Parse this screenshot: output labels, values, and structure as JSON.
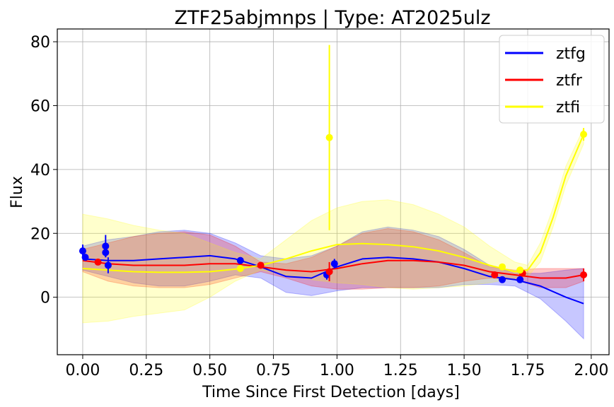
{
  "chart_data": {
    "type": "line",
    "title": "ZTF25abjmnps | Type: AT2025ulz",
    "xlabel": "Time Since First Detection [days]",
    "ylabel": "Flux",
    "xlim": [
      -0.1,
      2.07
    ],
    "ylim": [
      -18,
      84
    ],
    "xticks": [
      0.0,
      0.25,
      0.5,
      0.75,
      1.0,
      1.25,
      1.5,
      1.75,
      2.0
    ],
    "xtick_labels": [
      "0.00",
      "0.25",
      "0.50",
      "0.75",
      "1.00",
      "1.25",
      "1.50",
      "1.75",
      "2.00"
    ],
    "yticks": [
      0,
      20,
      40,
      60,
      80
    ],
    "ytick_labels": [
      "0",
      "20",
      "40",
      "60",
      "80"
    ],
    "grid": true,
    "legend_position": "top-right",
    "series": [
      {
        "name": "ztfg",
        "color": "#0000ff",
        "model_x": [
          0.0,
          0.1,
          0.2,
          0.3,
          0.4,
          0.5,
          0.6,
          0.7,
          0.8,
          0.9,
          1.0,
          1.1,
          1.2,
          1.3,
          1.4,
          1.5,
          1.6,
          1.7,
          1.8,
          1.9,
          1.97
        ],
        "model_y": [
          12.0,
          11.5,
          11.5,
          12.0,
          12.5,
          13.0,
          12.0,
          9.5,
          6.5,
          6.0,
          9.5,
          12.0,
          12.5,
          12.0,
          11.0,
          9.0,
          6.5,
          5.5,
          3.5,
          0.0,
          -2.0
        ],
        "band_upper": [
          16.0,
          18.0,
          19.0,
          20.5,
          21.0,
          20.0,
          17.0,
          13.0,
          12.0,
          13.0,
          16.0,
          20.5,
          22.0,
          21.0,
          19.0,
          15.0,
          10.0,
          7.5,
          7.5,
          8.5,
          9.0
        ],
        "band_lower": [
          8.5,
          6.5,
          4.5,
          3.5,
          3.5,
          5.0,
          7.0,
          6.0,
          1.5,
          0.5,
          2.0,
          3.0,
          3.0,
          3.0,
          3.0,
          4.0,
          4.0,
          3.5,
          -0.5,
          -7.5,
          -13.0
        ],
        "points": [
          {
            "x": 0.0,
            "y": 14.5,
            "err": 2.0
          },
          {
            "x": 0.01,
            "y": 12.5,
            "err": 1.0
          },
          {
            "x": 0.09,
            "y": 16.0,
            "err": 3.5
          },
          {
            "x": 0.09,
            "y": 14.0,
            "err": 1.5
          },
          {
            "x": 0.1,
            "y": 10.0,
            "err": 2.5
          },
          {
            "x": 0.62,
            "y": 11.5,
            "err": 1.0
          },
          {
            "x": 0.96,
            "y": 7.0,
            "err": 1.5
          },
          {
            "x": 0.99,
            "y": 10.5,
            "err": 1.5
          },
          {
            "x": 1.65,
            "y": 5.5,
            "err": 0.8
          },
          {
            "x": 1.72,
            "y": 5.5,
            "err": 0.8
          }
        ]
      },
      {
        "name": "ztfr",
        "color": "#ff0000",
        "model_x": [
          0.0,
          0.1,
          0.2,
          0.3,
          0.4,
          0.5,
          0.6,
          0.7,
          0.8,
          0.9,
          1.0,
          1.1,
          1.2,
          1.3,
          1.4,
          1.5,
          1.6,
          1.7,
          1.8,
          1.9,
          1.97
        ],
        "model_y": [
          11.5,
          10.5,
          10.0,
          10.0,
          10.0,
          10.5,
          10.5,
          9.5,
          8.5,
          8.0,
          9.0,
          10.5,
          11.5,
          11.5,
          11.0,
          10.0,
          8.0,
          7.0,
          6.0,
          6.0,
          7.0
        ],
        "band_upper": [
          15.0,
          17.0,
          19.0,
          20.0,
          20.5,
          19.5,
          16.0,
          11.0,
          10.5,
          12.5,
          16.0,
          20.0,
          21.5,
          20.5,
          18.0,
          14.0,
          9.5,
          8.5,
          9.0,
          9.0,
          9.0
        ],
        "band_lower": [
          8.0,
          5.0,
          3.5,
          3.0,
          3.0,
          4.0,
          6.0,
          8.0,
          6.0,
          3.5,
          2.5,
          2.5,
          3.0,
          3.0,
          3.5,
          5.0,
          6.0,
          5.5,
          3.0,
          3.0,
          5.0
        ],
        "points": [
          {
            "x": 0.06,
            "y": 11.0,
            "err": 1.0
          },
          {
            "x": 0.7,
            "y": 10.0,
            "err": 1.0
          },
          {
            "x": 0.97,
            "y": 8.0,
            "err": 3.0
          },
          {
            "x": 1.62,
            "y": 7.0,
            "err": 1.0
          },
          {
            "x": 1.73,
            "y": 7.5,
            "err": 1.0
          },
          {
            "x": 1.97,
            "y": 7.0,
            "err": 2.0
          }
        ]
      },
      {
        "name": "ztfi",
        "color": "#ffff00",
        "model_x": [
          0.0,
          0.1,
          0.2,
          0.3,
          0.4,
          0.5,
          0.6,
          0.7,
          0.8,
          0.9,
          1.0,
          1.1,
          1.2,
          1.3,
          1.4,
          1.5,
          1.6,
          1.7,
          1.75,
          1.8,
          1.85,
          1.9,
          1.97
        ],
        "model_y": [
          9.0,
          8.5,
          8.0,
          7.8,
          7.8,
          8.0,
          8.8,
          10.0,
          12.0,
          14.5,
          16.5,
          16.8,
          16.5,
          15.8,
          14.5,
          12.5,
          10.0,
          8.0,
          8.5,
          14.0,
          25.0,
          38.0,
          51.0
        ],
        "band_upper": [
          26.0,
          24.5,
          22.5,
          21.0,
          20.0,
          17.0,
          14.0,
          12.0,
          18.0,
          24.0,
          28.0,
          30.0,
          30.5,
          29.0,
          26.0,
          22.0,
          16.0,
          11.0,
          10.0,
          17.0,
          28.0,
          41.0,
          53.0
        ],
        "band_lower": [
          -8.0,
          -7.5,
          -6.0,
          -5.0,
          -4.0,
          0.0,
          5.0,
          8.5,
          7.0,
          5.5,
          4.5,
          4.0,
          3.0,
          2.5,
          3.0,
          3.5,
          4.5,
          6.0,
          6.5,
          11.0,
          22.0,
          35.0,
          48.0
        ],
        "points": [
          {
            "x": 0.62,
            "y": 9.0,
            "err": 1.0
          },
          {
            "x": 0.97,
            "y": 50.0,
            "err": 29.0
          },
          {
            "x": 1.65,
            "y": 9.5,
            "err": 1.0
          },
          {
            "x": 1.72,
            "y": 8.5,
            "err": 1.0
          },
          {
            "x": 1.97,
            "y": 51.0,
            "err": 2.0
          }
        ]
      }
    ]
  }
}
